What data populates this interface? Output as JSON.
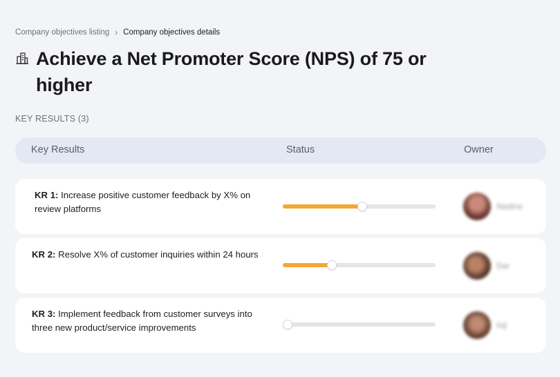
{
  "breadcrumb": {
    "parent": "Company objectives listing",
    "separator": "›",
    "current": "Company objectives details"
  },
  "page": {
    "title": "Achieve a Net Promoter Score (NPS) of 75 or higher",
    "title_icon": "building-icon"
  },
  "section": {
    "label": "KEY RESULTS (3)"
  },
  "table": {
    "headers": {
      "key_results": "Key Results",
      "status": "Status",
      "owner": "Owner"
    }
  },
  "key_results": [
    {
      "tag": "KR 1:",
      "text": "Increase positive customer feedback by X% on review platforms",
      "progress_percent": 52,
      "owner": "Nadine"
    },
    {
      "tag": "KR 2:",
      "text": "Resolve X% of customer inquiries within 24 hours",
      "progress_percent": 32,
      "owner": "Dar"
    },
    {
      "tag": "KR 3:",
      "text": "Implement feedback from customer surveys into three new product/service improvements",
      "progress_percent": 3,
      "owner": "Inji"
    }
  ],
  "colors": {
    "background": "#f3f4f7",
    "header_bar": "#e4e8f2",
    "progress_fill": "#f5a733",
    "progress_track": "#e4e5e8"
  }
}
